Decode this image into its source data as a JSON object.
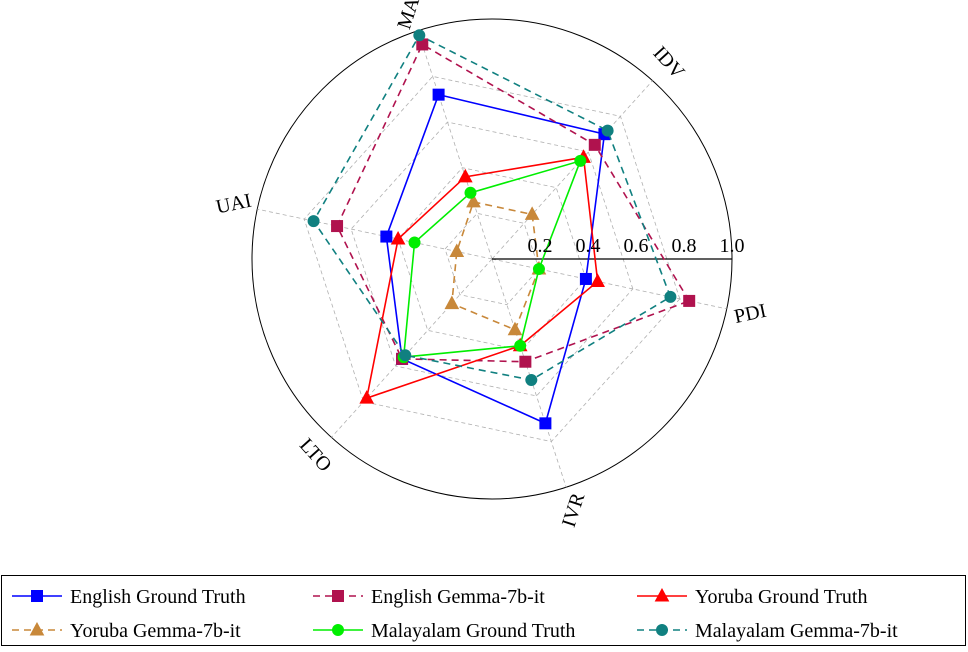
{
  "chart_data": {
    "type": "radar",
    "title": "",
    "axes": [
      "PDI",
      "IDV",
      "MAS",
      "UAI",
      "LTO",
      "IVR"
    ],
    "radial_range": [
      0,
      1.0
    ],
    "radial_ticks": [
      0.2,
      0.4,
      0.6,
      0.8,
      1.0
    ],
    "radial_tick_labels": [
      "0.2",
      "0.4",
      "0.6",
      "0.8",
      "1.0"
    ],
    "grid": true,
    "legend_position": "bottom",
    "series": [
      {
        "name": "English Ground Truth",
        "color": "#0000ff",
        "line": "solid",
        "marker": "square",
        "values": [
          0.4,
          0.7,
          0.72,
          0.45,
          0.56,
          0.72
        ]
      },
      {
        "name": "English Gemma-7b-it",
        "color": "#b0124e",
        "line": "dashed",
        "marker": "square",
        "values": [
          0.84,
          0.64,
          0.94,
          0.66,
          0.56,
          0.45
        ]
      },
      {
        "name": "Yoruba Ground Truth",
        "color": "#ff0000",
        "line": "solid",
        "marker": "triangle",
        "values": [
          0.45,
          0.57,
          0.36,
          0.4,
          0.78,
          0.38
        ]
      },
      {
        "name": "Yoruba Gemma-7b-it",
        "color": "#c8883a",
        "line": "dashed",
        "marker": "triangle",
        "values": [
          0.2,
          0.25,
          0.25,
          0.15,
          0.25,
          0.31
        ]
      },
      {
        "name": "Malayalam Ground Truth",
        "color": "#00ee00",
        "line": "solid",
        "marker": "circle",
        "values": [
          0.2,
          0.55,
          0.29,
          0.33,
          0.55,
          0.38
        ]
      },
      {
        "name": "Malayalam Gemma-7b-it",
        "color": "#108080",
        "line": "dashed",
        "marker": "circle",
        "values": [
          0.76,
          0.72,
          0.98,
          0.76,
          0.54,
          0.53
        ]
      }
    ]
  }
}
